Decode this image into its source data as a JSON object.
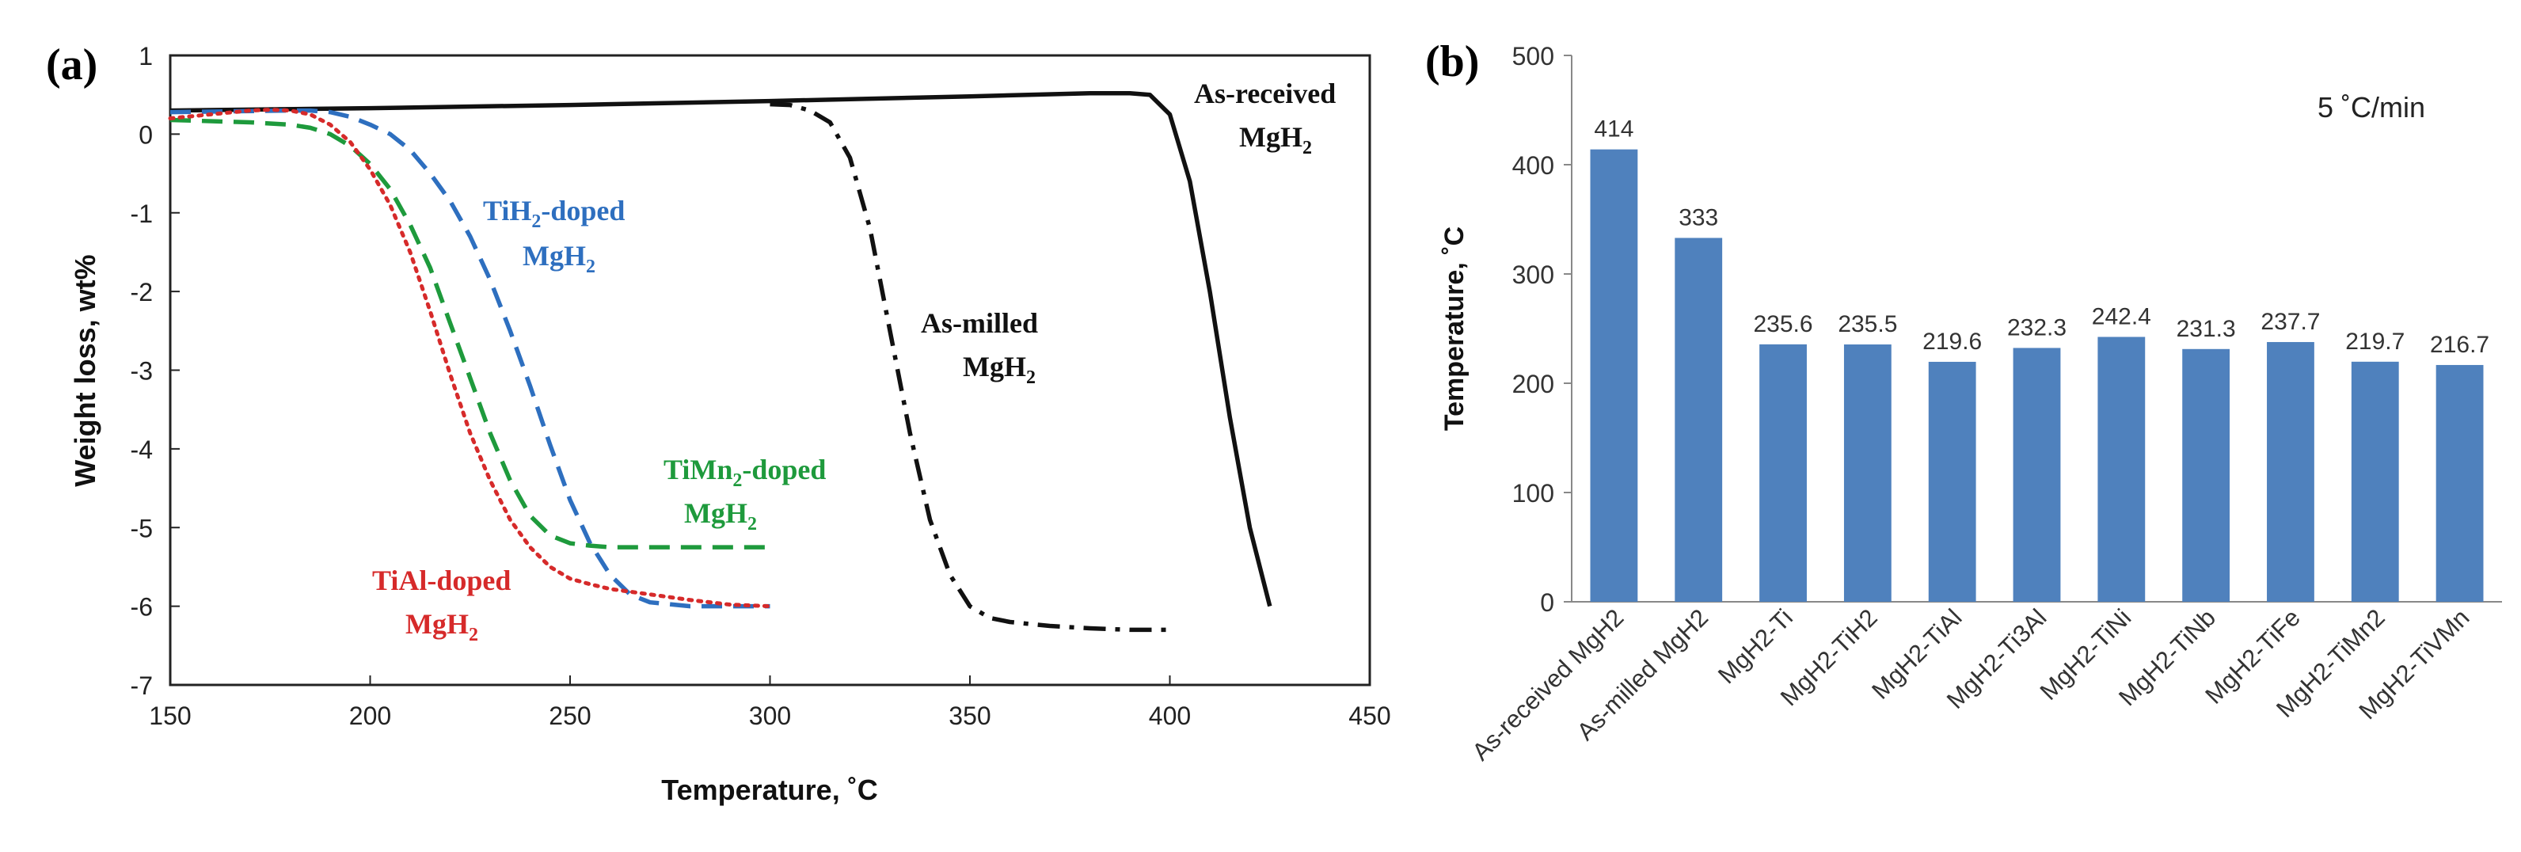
{
  "chart_data": [
    {
      "panel_label": "(a)",
      "type": "line",
      "title": "",
      "xlabel": "Temperature, ˚C",
      "ylabel": "Weight loss, wt%",
      "xlim": [
        150,
        450
      ],
      "ylim": [
        -7,
        1
      ],
      "xticks": [
        150,
        200,
        250,
        300,
        350,
        400,
        450
      ],
      "yticks": [
        1,
        0,
        -1,
        -2,
        -3,
        -4,
        -5,
        -6,
        -7
      ],
      "grid": false,
      "series": [
        {
          "name": "As-received MgH2",
          "label_line1": "As-received",
          "label_line2_base": "MgH",
          "label_sub": "2",
          "color": "#111111",
          "dash": "solid",
          "x": [
            150,
            200,
            250,
            300,
            350,
            380,
            390,
            395,
            400,
            405,
            410,
            415,
            420,
            425
          ],
          "y": [
            0.3,
            0.33,
            0.37,
            0.42,
            0.48,
            0.52,
            0.52,
            0.5,
            0.25,
            -0.6,
            -2.0,
            -3.6,
            -5.0,
            -6.0
          ]
        },
        {
          "name": "As-milled MgH2",
          "label_line1": "As-milled",
          "label_line2_base": "MgH",
          "label_sub": "2",
          "color": "#111111",
          "dash": "dashdot",
          "x": [
            300,
            305,
            310,
            315,
            320,
            325,
            330,
            335,
            340,
            345,
            350,
            355,
            360,
            370,
            380,
            390,
            400
          ],
          "y": [
            0.38,
            0.37,
            0.3,
            0.15,
            -0.3,
            -1.2,
            -2.5,
            -3.8,
            -4.9,
            -5.6,
            -6.0,
            -6.15,
            -6.2,
            -6.25,
            -6.28,
            -6.3,
            -6.3
          ]
        },
        {
          "name": "TiH2-doped MgH2",
          "label_line1_base": "TiH",
          "label_line1_sub": "2",
          "label_line1_rest": "-doped",
          "label_line2_base": "MgH",
          "label_line2_sub": "2",
          "color": "#2e6fbf",
          "dash": "dashed",
          "x": [
            150,
            180,
            185,
            190,
            195,
            200,
            205,
            210,
            215,
            220,
            225,
            230,
            235,
            240,
            245,
            250,
            255,
            260,
            265,
            270,
            280,
            290,
            300
          ],
          "y": [
            0.28,
            0.3,
            0.3,
            0.28,
            0.22,
            0.12,
            0.0,
            -0.2,
            -0.5,
            -0.85,
            -1.3,
            -1.85,
            -2.5,
            -3.2,
            -3.95,
            -4.65,
            -5.2,
            -5.6,
            -5.85,
            -5.95,
            -6.0,
            -6.0,
            -6.0
          ]
        },
        {
          "name": "TiMn2-doped MgH2",
          "label_line1_base": "TiMn",
          "label_line1_sub": "2",
          "label_line1_rest": "-doped",
          "label_line2_base": "MgH",
          "label_line2_sub": "2",
          "color": "#1e9a3c",
          "dash": "dashed",
          "x": [
            150,
            170,
            180,
            185,
            190,
            195,
            200,
            205,
            210,
            215,
            220,
            225,
            230,
            235,
            240,
            245,
            250,
            255,
            260,
            270,
            280,
            290,
            300
          ],
          "y": [
            0.18,
            0.15,
            0.12,
            0.08,
            0.0,
            -0.15,
            -0.38,
            -0.7,
            -1.15,
            -1.7,
            -2.4,
            -3.1,
            -3.8,
            -4.4,
            -4.85,
            -5.1,
            -5.2,
            -5.23,
            -5.25,
            -5.25,
            -5.25,
            -5.25,
            -5.25
          ]
        },
        {
          "name": "TiAl-doped MgH2",
          "label_line1": "TiAl-doped",
          "label_line2_base": "MgH",
          "label_sub": "2",
          "color": "#d62a2a",
          "dash": "dotted",
          "x": [
            150,
            160,
            170,
            175,
            180,
            185,
            190,
            195,
            200,
            205,
            210,
            215,
            220,
            225,
            230,
            235,
            240,
            245,
            250,
            255,
            260,
            270,
            280,
            290,
            300
          ],
          "y": [
            0.2,
            0.25,
            0.3,
            0.31,
            0.3,
            0.25,
            0.12,
            -0.1,
            -0.45,
            -0.9,
            -1.5,
            -2.25,
            -3.05,
            -3.8,
            -4.4,
            -4.9,
            -5.25,
            -5.5,
            -5.65,
            -5.72,
            -5.78,
            -5.85,
            -5.92,
            -5.98,
            -6.0
          ]
        }
      ]
    },
    {
      "panel_label": "(b)",
      "type": "bar",
      "title": "",
      "annotation": "5 ˚C/min",
      "xlabel": "",
      "ylabel": "Temperature, ˚C",
      "ylim": [
        0,
        500
      ],
      "yticks": [
        0,
        100,
        200,
        300,
        400,
        500
      ],
      "grid": false,
      "bar_color": "#4f81bd",
      "categories": [
        "As-received MgH2",
        "As-milled MgH2",
        "MgH2-Ti",
        "MgH2-TiH2",
        "MgH2-TiAl",
        "MgH2-Ti3Al",
        "MgH2-TiNi",
        "MgH2-TiNb",
        "MgH2-TiFe",
        "MgH2-TiMn2",
        "MgH2-TiVMn"
      ],
      "values": [
        414,
        333,
        235.6,
        235.5,
        219.6,
        232.3,
        242.4,
        231.3,
        237.7,
        219.7,
        216.7
      ],
      "value_labels": [
        "414",
        "333",
        "235.6",
        "235.5",
        "219.6",
        "232.3",
        "242.4",
        "231.3",
        "237.7",
        "219.7",
        "216.7"
      ]
    }
  ]
}
